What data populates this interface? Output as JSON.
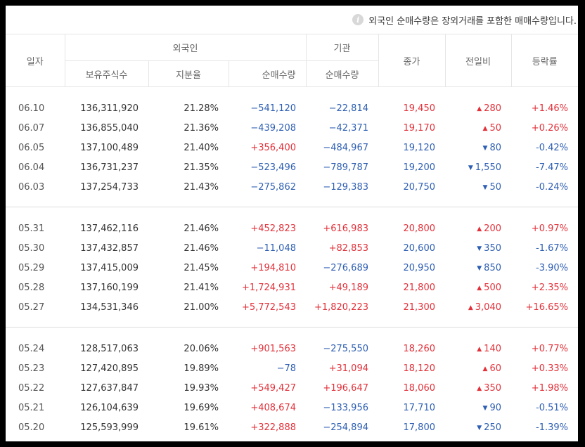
{
  "notice": {
    "icon": "info-icon",
    "text": "외국인 순매수량은 장외거래를 포함한 매매수량입니다."
  },
  "header": {
    "date": "일자",
    "foreign": "외국인",
    "institution": "기관",
    "close": "종가",
    "change": "전일비",
    "rate": "등락률",
    "holdings": "보유주식수",
    "share": "지분율",
    "foreign_net": "순매수량",
    "inst_net": "순매수량"
  },
  "groups": [
    [
      {
        "date": "06.10",
        "holdings": "136,311,920",
        "share": "21.28%",
        "foreign_net": "−541,120",
        "fdir": "down",
        "inst_net": "−22,814",
        "idir": "down",
        "close": "19,450",
        "dir": "up",
        "change": "280",
        "rate": "+1.46%"
      },
      {
        "date": "06.07",
        "holdings": "136,855,040",
        "share": "21.36%",
        "foreign_net": "−439,208",
        "fdir": "down",
        "inst_net": "−42,371",
        "idir": "down",
        "close": "19,170",
        "dir": "up",
        "change": "50",
        "rate": "+0.26%"
      },
      {
        "date": "06.05",
        "holdings": "137,100,489",
        "share": "21.40%",
        "foreign_net": "+356,400",
        "fdir": "up",
        "inst_net": "−484,967",
        "idir": "down",
        "close": "19,120",
        "dir": "down",
        "change": "80",
        "rate": "-0.42%"
      },
      {
        "date": "06.04",
        "holdings": "136,731,237",
        "share": "21.35%",
        "foreign_net": "−523,496",
        "fdir": "down",
        "inst_net": "−789,787",
        "idir": "down",
        "close": "19,200",
        "dir": "down",
        "change": "1,550",
        "rate": "-7.47%"
      },
      {
        "date": "06.03",
        "holdings": "137,254,733",
        "share": "21.43%",
        "foreign_net": "−275,862",
        "fdir": "down",
        "inst_net": "−129,383",
        "idir": "down",
        "close": "20,750",
        "dir": "down",
        "change": "50",
        "rate": "-0.24%"
      }
    ],
    [
      {
        "date": "05.31",
        "holdings": "137,462,116",
        "share": "21.46%",
        "foreign_net": "+452,823",
        "fdir": "up",
        "inst_net": "+616,983",
        "idir": "up",
        "close": "20,800",
        "dir": "up",
        "change": "200",
        "rate": "+0.97%"
      },
      {
        "date": "05.30",
        "holdings": "137,432,857",
        "share": "21.46%",
        "foreign_net": "−11,048",
        "fdir": "down",
        "inst_net": "+82,853",
        "idir": "up",
        "close": "20,600",
        "dir": "down",
        "change": "350",
        "rate": "-1.67%"
      },
      {
        "date": "05.29",
        "holdings": "137,415,009",
        "share": "21.45%",
        "foreign_net": "+194,810",
        "fdir": "up",
        "inst_net": "−276,689",
        "idir": "down",
        "close": "20,950",
        "dir": "down",
        "change": "850",
        "rate": "-3.90%"
      },
      {
        "date": "05.28",
        "holdings": "137,160,199",
        "share": "21.41%",
        "foreign_net": "+1,724,931",
        "fdir": "up",
        "inst_net": "+49,189",
        "idir": "up",
        "close": "21,800",
        "dir": "up",
        "change": "500",
        "rate": "+2.35%"
      },
      {
        "date": "05.27",
        "holdings": "134,531,346",
        "share": "21.00%",
        "foreign_net": "+5,772,543",
        "fdir": "up",
        "inst_net": "+1,820,223",
        "idir": "up",
        "close": "21,300",
        "dir": "up",
        "change": "3,040",
        "rate": "+16.65%"
      }
    ],
    [
      {
        "date": "05.24",
        "holdings": "128,517,063",
        "share": "20.06%",
        "foreign_net": "+901,563",
        "fdir": "up",
        "inst_net": "−275,550",
        "idir": "down",
        "close": "18,260",
        "dir": "up",
        "change": "140",
        "rate": "+0.77%"
      },
      {
        "date": "05.23",
        "holdings": "127,420,895",
        "share": "19.89%",
        "foreign_net": "−78",
        "fdir": "down",
        "inst_net": "+31,094",
        "idir": "up",
        "close": "18,120",
        "dir": "up",
        "change": "60",
        "rate": "+0.33%"
      },
      {
        "date": "05.22",
        "holdings": "127,637,847",
        "share": "19.93%",
        "foreign_net": "+549,427",
        "fdir": "up",
        "inst_net": "+196,647",
        "idir": "up",
        "close": "18,060",
        "dir": "up",
        "change": "350",
        "rate": "+1.98%"
      },
      {
        "date": "05.21",
        "holdings": "126,104,639",
        "share": "19.69%",
        "foreign_net": "+408,674",
        "fdir": "up",
        "inst_net": "−133,956",
        "idir": "down",
        "close": "17,710",
        "dir": "down",
        "change": "90",
        "rate": "-0.51%"
      },
      {
        "date": "05.20",
        "holdings": "125,593,999",
        "share": "19.61%",
        "foreign_net": "+322,888",
        "fdir": "up",
        "inst_net": "−254,894",
        "idir": "down",
        "close": "17,800",
        "dir": "down",
        "change": "250",
        "rate": "-1.39%"
      }
    ]
  ],
  "colors": {
    "up": "#e2313a",
    "down": "#2e5fb3"
  },
  "glyphs": {
    "up": "▲",
    "down": "▼"
  }
}
